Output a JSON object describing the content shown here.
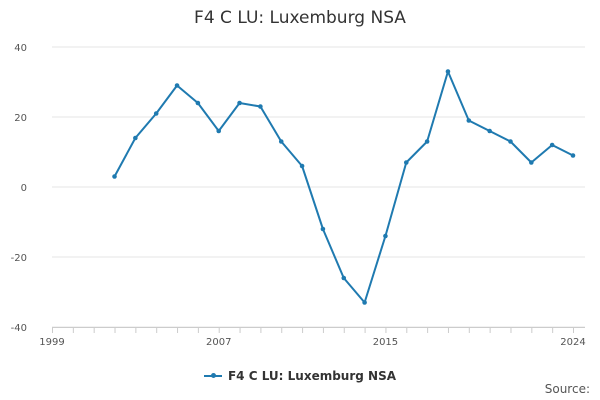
{
  "title": "F4 C LU: Luxemburg NSA",
  "source_label": "Source:",
  "colors": {
    "series": "#1f7ab0",
    "grid": "#e6e6e6",
    "axis": "#cccccc"
  },
  "chart_data": {
    "type": "line",
    "title": "F4 C LU: Luxemburg NSA",
    "xlabel": "",
    "ylabel": "",
    "xlim": [
      1999,
      2024
    ],
    "ylim": [
      -40,
      40
    ],
    "x_ticks": [
      1999,
      2007,
      2015,
      2024
    ],
    "y_ticks": [
      40,
      20,
      0,
      -20,
      -40
    ],
    "grid": true,
    "legend": "bottom-center",
    "series": [
      {
        "name": "F4 C LU: Luxemburg NSA",
        "x": [
          2002,
          2003,
          2004,
          2005,
          2006,
          2007,
          2008,
          2009,
          2010,
          2011,
          2012,
          2013,
          2014,
          2015,
          2016,
          2017,
          2018,
          2019,
          2020,
          2021,
          2022,
          2023,
          2024
        ],
        "y": [
          3,
          14,
          21,
          29,
          24,
          16,
          24,
          23,
          13,
          6,
          -12,
          -26,
          -33,
          -14,
          7,
          13,
          33,
          19,
          16,
          13,
          7,
          12,
          9
        ]
      }
    ]
  }
}
